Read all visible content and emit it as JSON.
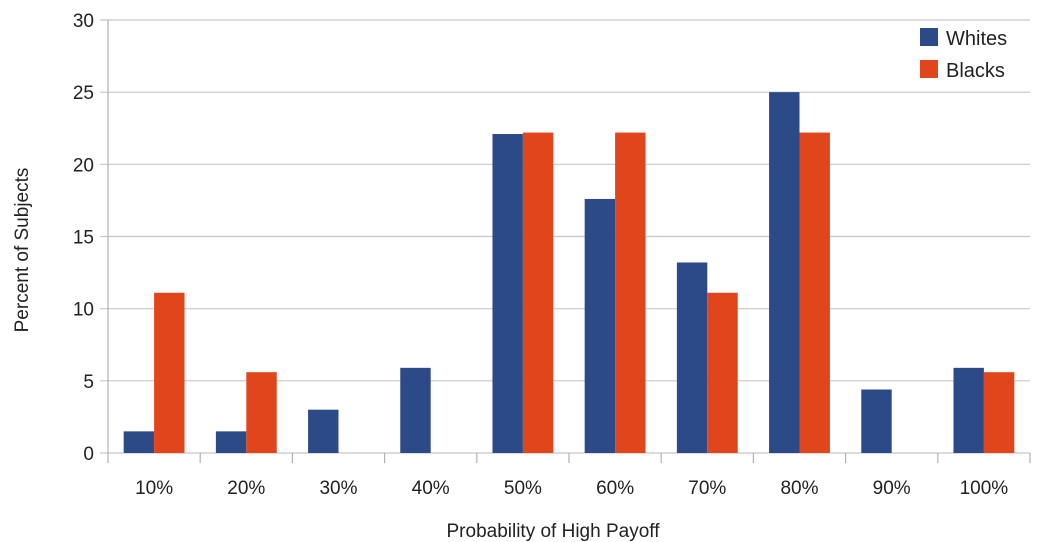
{
  "chart_data": {
    "type": "bar",
    "xlabel": "Probability of High Payoff",
    "ylabel": "Percent of Subjects",
    "categories": [
      "10%",
      "20%",
      "30%",
      "40%",
      "50%",
      "60%",
      "70%",
      "80%",
      "90%",
      "100%"
    ],
    "series": [
      {
        "name": "Whites",
        "color": "#2b4a87",
        "values": [
          1.5,
          1.5,
          3.0,
          5.9,
          22.1,
          17.6,
          13.2,
          25.0,
          4.4,
          5.9
        ]
      },
      {
        "name": "Blacks",
        "color": "#e0451b",
        "values": [
          11.1,
          5.6,
          0,
          0,
          22.2,
          22.2,
          11.1,
          22.2,
          0,
          5.6
        ]
      }
    ],
    "ylim": [
      0,
      30
    ],
    "yticks": [
      0,
      5,
      10,
      15,
      20,
      25,
      30
    ],
    "grid": true,
    "legend_position": "top-right"
  }
}
